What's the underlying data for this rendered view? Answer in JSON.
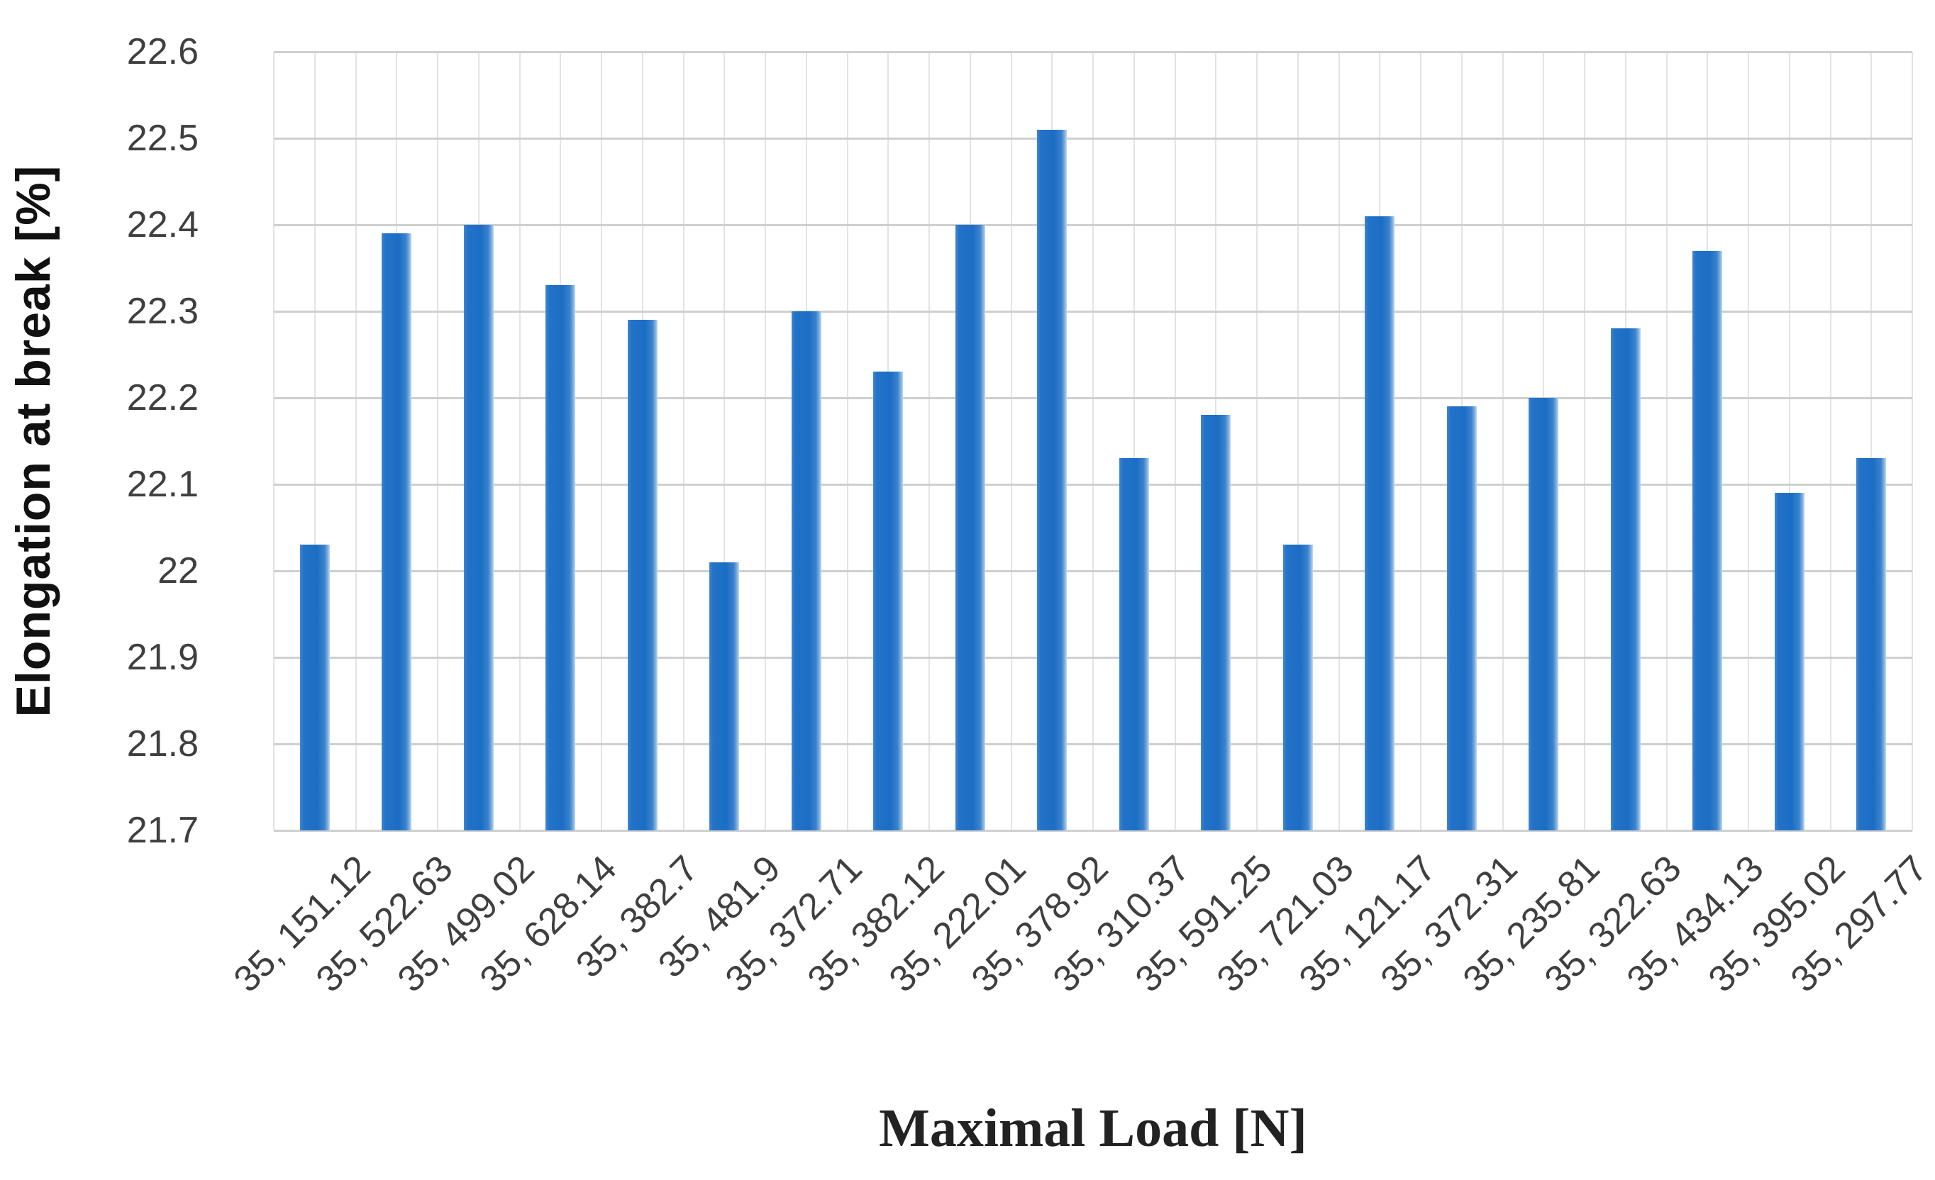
{
  "chart_data": {
    "type": "bar",
    "title": "",
    "xlabel": "Maximal Load [N]",
    "ylabel": "Elongation at break [%]",
    "categories": [
      "35, 151.12",
      "35, 522.63",
      "35, 499.02",
      "35, 628.14",
      "35, 382.7",
      "35, 481.9",
      "35, 372.71",
      "35, 382.12",
      "35, 222.01",
      "35, 378.92",
      "35, 310.37",
      "35, 591.25",
      "35, 721.03",
      "35, 121.17",
      "35, 372.31",
      "35, 235.81",
      "35, 322.63",
      "35, 434.13",
      "35, 395.02",
      "35, 297.77"
    ],
    "values": [
      22.03,
      22.39,
      22.4,
      22.33,
      22.29,
      22.01,
      22.3,
      22.23,
      22.4,
      22.51,
      22.13,
      22.18,
      22.03,
      22.41,
      22.19,
      22.2,
      22.28,
      22.37,
      22.09,
      22.13
    ],
    "ylim": [
      21.7,
      22.6
    ],
    "ytick_step": 0.1,
    "ytick_labels": [
      "21.7",
      "21.8",
      "21.9",
      "22",
      "22.1",
      "22.2",
      "22.3",
      "22.4",
      "22.5",
      "22.6"
    ],
    "grid": "major-horizontal + minor-vertical",
    "legend": "none",
    "colors": {
      "bar": "#1e6fc5",
      "bar_edge_light": "#c3d9f2",
      "hgrid": "#cfcfcf",
      "vgrid": "#e3e3e3",
      "tick_text": "#3f3f3f",
      "axis_title_text": "#111111",
      "background": "#ffffff"
    }
  }
}
